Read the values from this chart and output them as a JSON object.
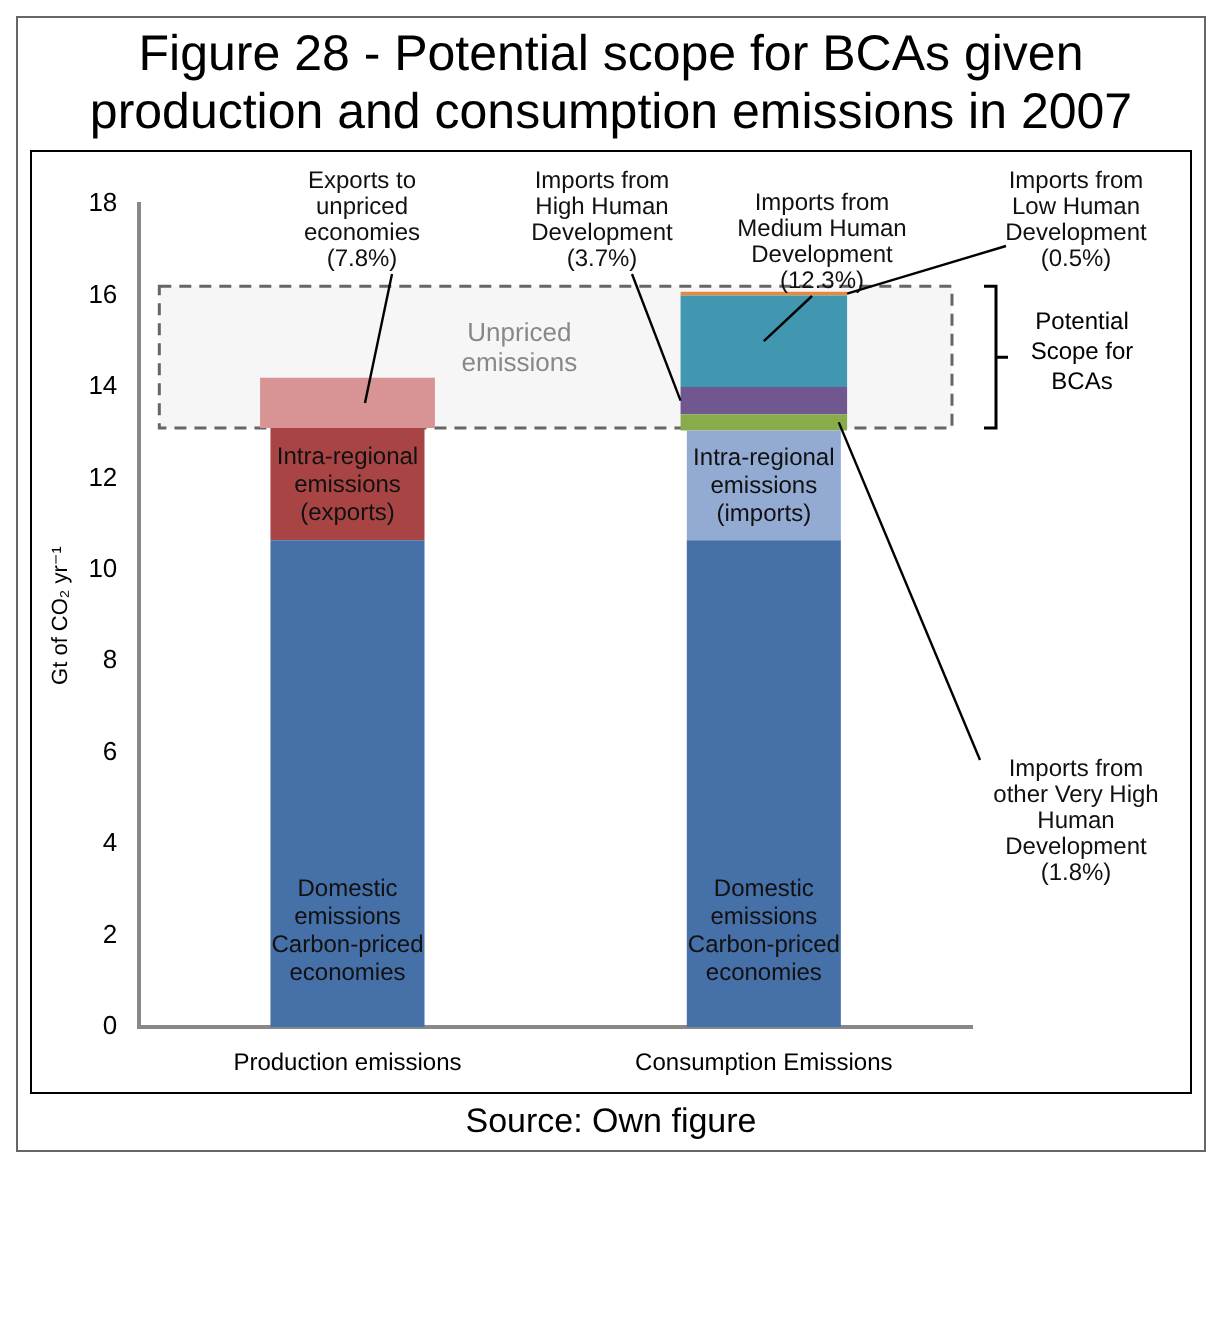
{
  "chart_data": {
    "type": "bar",
    "title": "Figure 28 - Potential scope for BCAs given production and consumption emissions in 2007",
    "ylabel": "Gt of CO₂ yr⁻¹",
    "categories": [
      "Production emissions",
      "Consumption Emissions"
    ],
    "stacked": true,
    "legend": false,
    "grid": false,
    "ylim": [
      0,
      18
    ],
    "yticks": [
      0,
      2,
      4,
      6,
      8,
      10,
      12,
      14,
      16,
      18
    ],
    "series": [
      {
        "name": "Domestic emissions Carbon-priced economies",
        "color": "#4670a8",
        "values": [
          10.65,
          10.65
        ]
      },
      {
        "name": "Intra-regional emissions (exports)",
        "color": "#a94444",
        "values": [
          2.45,
          null
        ]
      },
      {
        "name": "Intra-regional emissions (imports)",
        "color": "#93aad3",
        "values": [
          null,
          2.4
        ]
      },
      {
        "name": "Exports to unpriced economies (7.8%)",
        "color": "#d89494",
        "values": [
          1.1,
          null
        ]
      },
      {
        "name": "Imports from other Very High Human Development (1.8%)",
        "color": "#8aab4b",
        "values": [
          null,
          0.35
        ]
      },
      {
        "name": "Imports from High Human Development (3.7%)",
        "color": "#71578f",
        "values": [
          null,
          0.6
        ]
      },
      {
        "name": "Imports from Medium Human Development (12.3%)",
        "color": "#4197b0",
        "values": [
          null,
          2.0
        ]
      },
      {
        "name": "Imports from Low Human Development (0.5%)",
        "color": "#e5893c",
        "values": [
          null,
          0.08
        ]
      }
    ],
    "bands": [
      {
        "axis": "y",
        "from": 13.1,
        "to": 16.2,
        "label": "Unpriced emissions",
        "color": "#666666"
      }
    ],
    "annotations": [
      "Potential Scope for BCAs",
      "Source: Own figure"
    ]
  }
}
